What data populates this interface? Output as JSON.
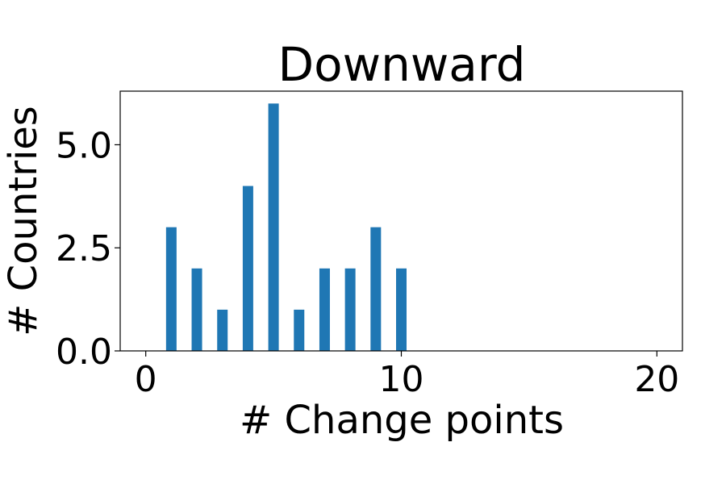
{
  "chart_data": {
    "type": "bar",
    "title": "Downward",
    "xlabel": "# Change points",
    "ylabel": "# Countries",
    "xlim": [
      -1,
      21
    ],
    "ylim": [
      0,
      6.3
    ],
    "xticks": [
      0,
      10,
      20
    ],
    "xtick_labels": [
      "0",
      "10",
      "20"
    ],
    "yticks": [
      0,
      2.5,
      5
    ],
    "ytick_labels": [
      "0.0",
      "2.5",
      "5.0"
    ],
    "grid": false,
    "bar_color": "#1f77b4",
    "x": [
      1,
      2,
      3,
      4,
      5,
      6,
      7,
      8,
      9,
      10
    ],
    "values": [
      3,
      2,
      1,
      4,
      6,
      1,
      2,
      2,
      3,
      2
    ]
  }
}
